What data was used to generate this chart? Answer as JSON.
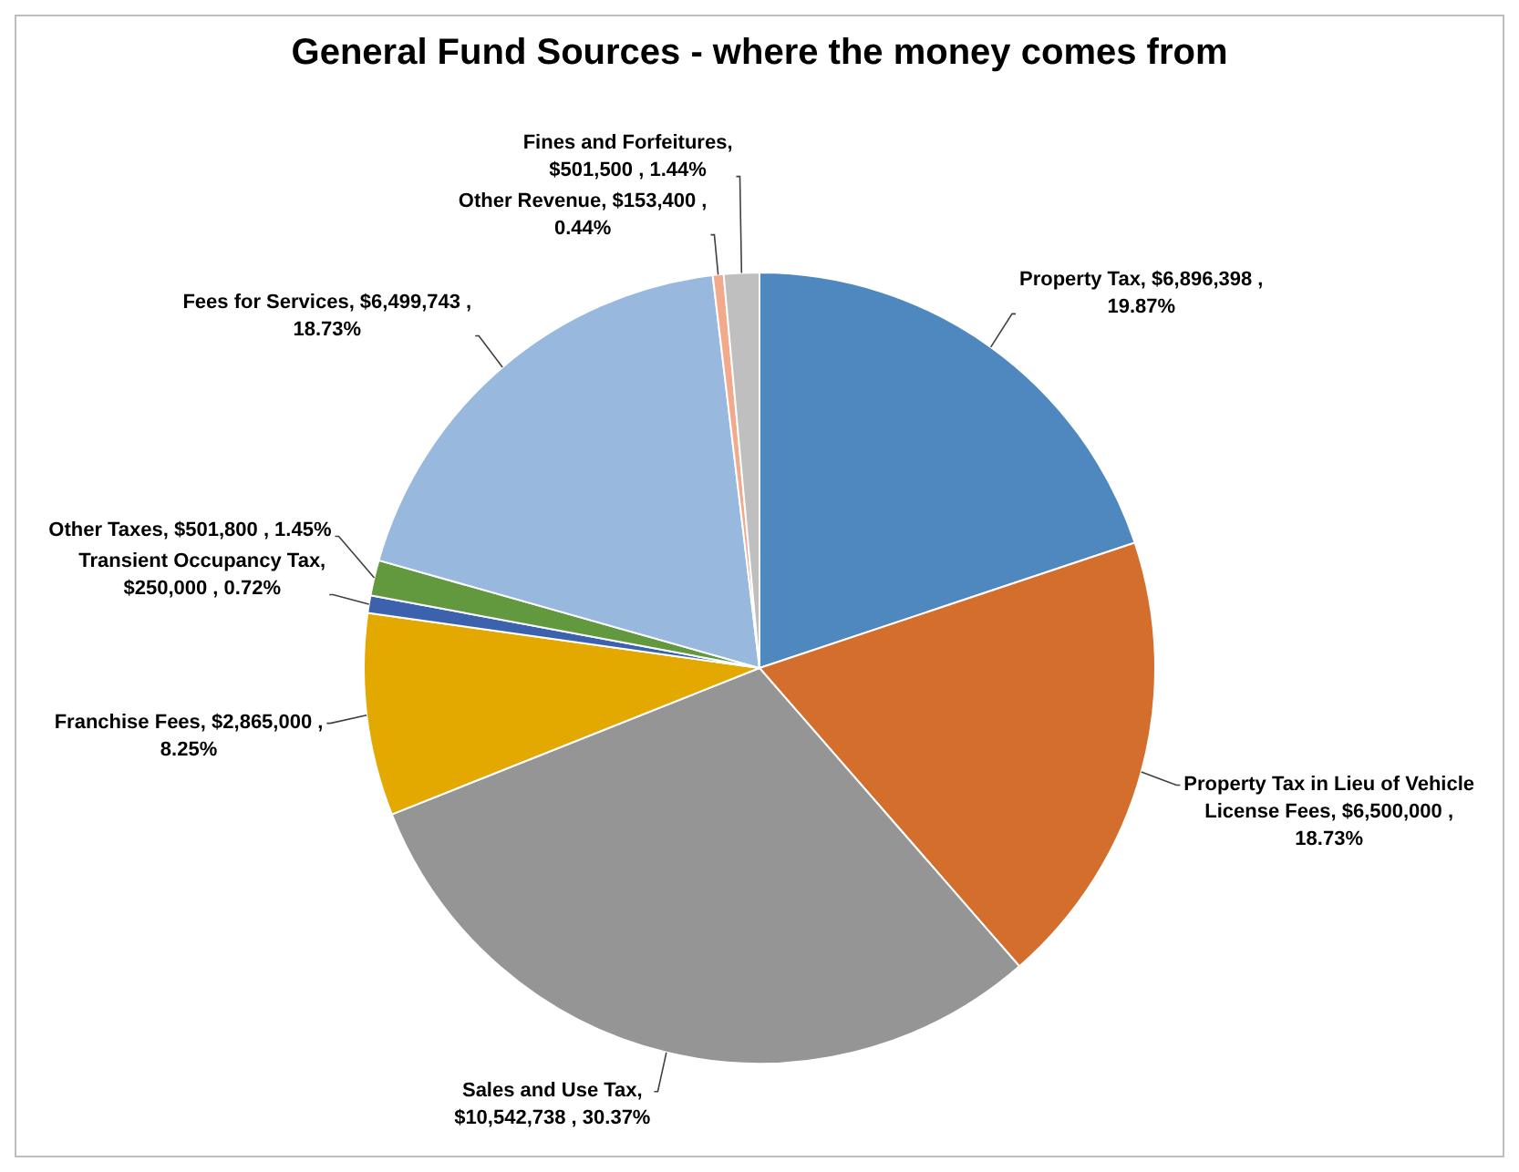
{
  "chart_data": {
    "type": "pie",
    "title": "General Fund Sources - where the money comes from",
    "categories": [
      "Property Tax",
      "Property Tax in Lieu of Vehicle License Fees",
      "Sales and Use Tax",
      "Franchise Fees",
      "Transient Occupancy Tax",
      "Other Taxes",
      "Fees for Services",
      "Other Revenue",
      "Fines and Forfeitures"
    ],
    "values": [
      6896398,
      6500000,
      10542738,
      2865000,
      250000,
      501800,
      6499743,
      153400,
      501500
    ],
    "value_labels": [
      ",  $6,896,398 , 19.87%",
      ",  $6,500,000 , 18.73%",
      ",  $10,542,738 , 30.37%",
      ",  $2,865,000 , 8.25%",
      ",  $250,000 , 0.72%",
      ",  $501,800 , 1.45%",
      ",  $6,499,743 , 18.73%",
      ",  $153,400 , 0.44%",
      ",  $501,500 , 1.44%"
    ],
    "colors": [
      "#4f88bf",
      "#d46e2c",
      "#959595",
      "#e3a900",
      "#3c62ae",
      "#62993e",
      "#98b8de",
      "#f2a98c",
      "#bfbfbf"
    ],
    "legend": false
  }
}
